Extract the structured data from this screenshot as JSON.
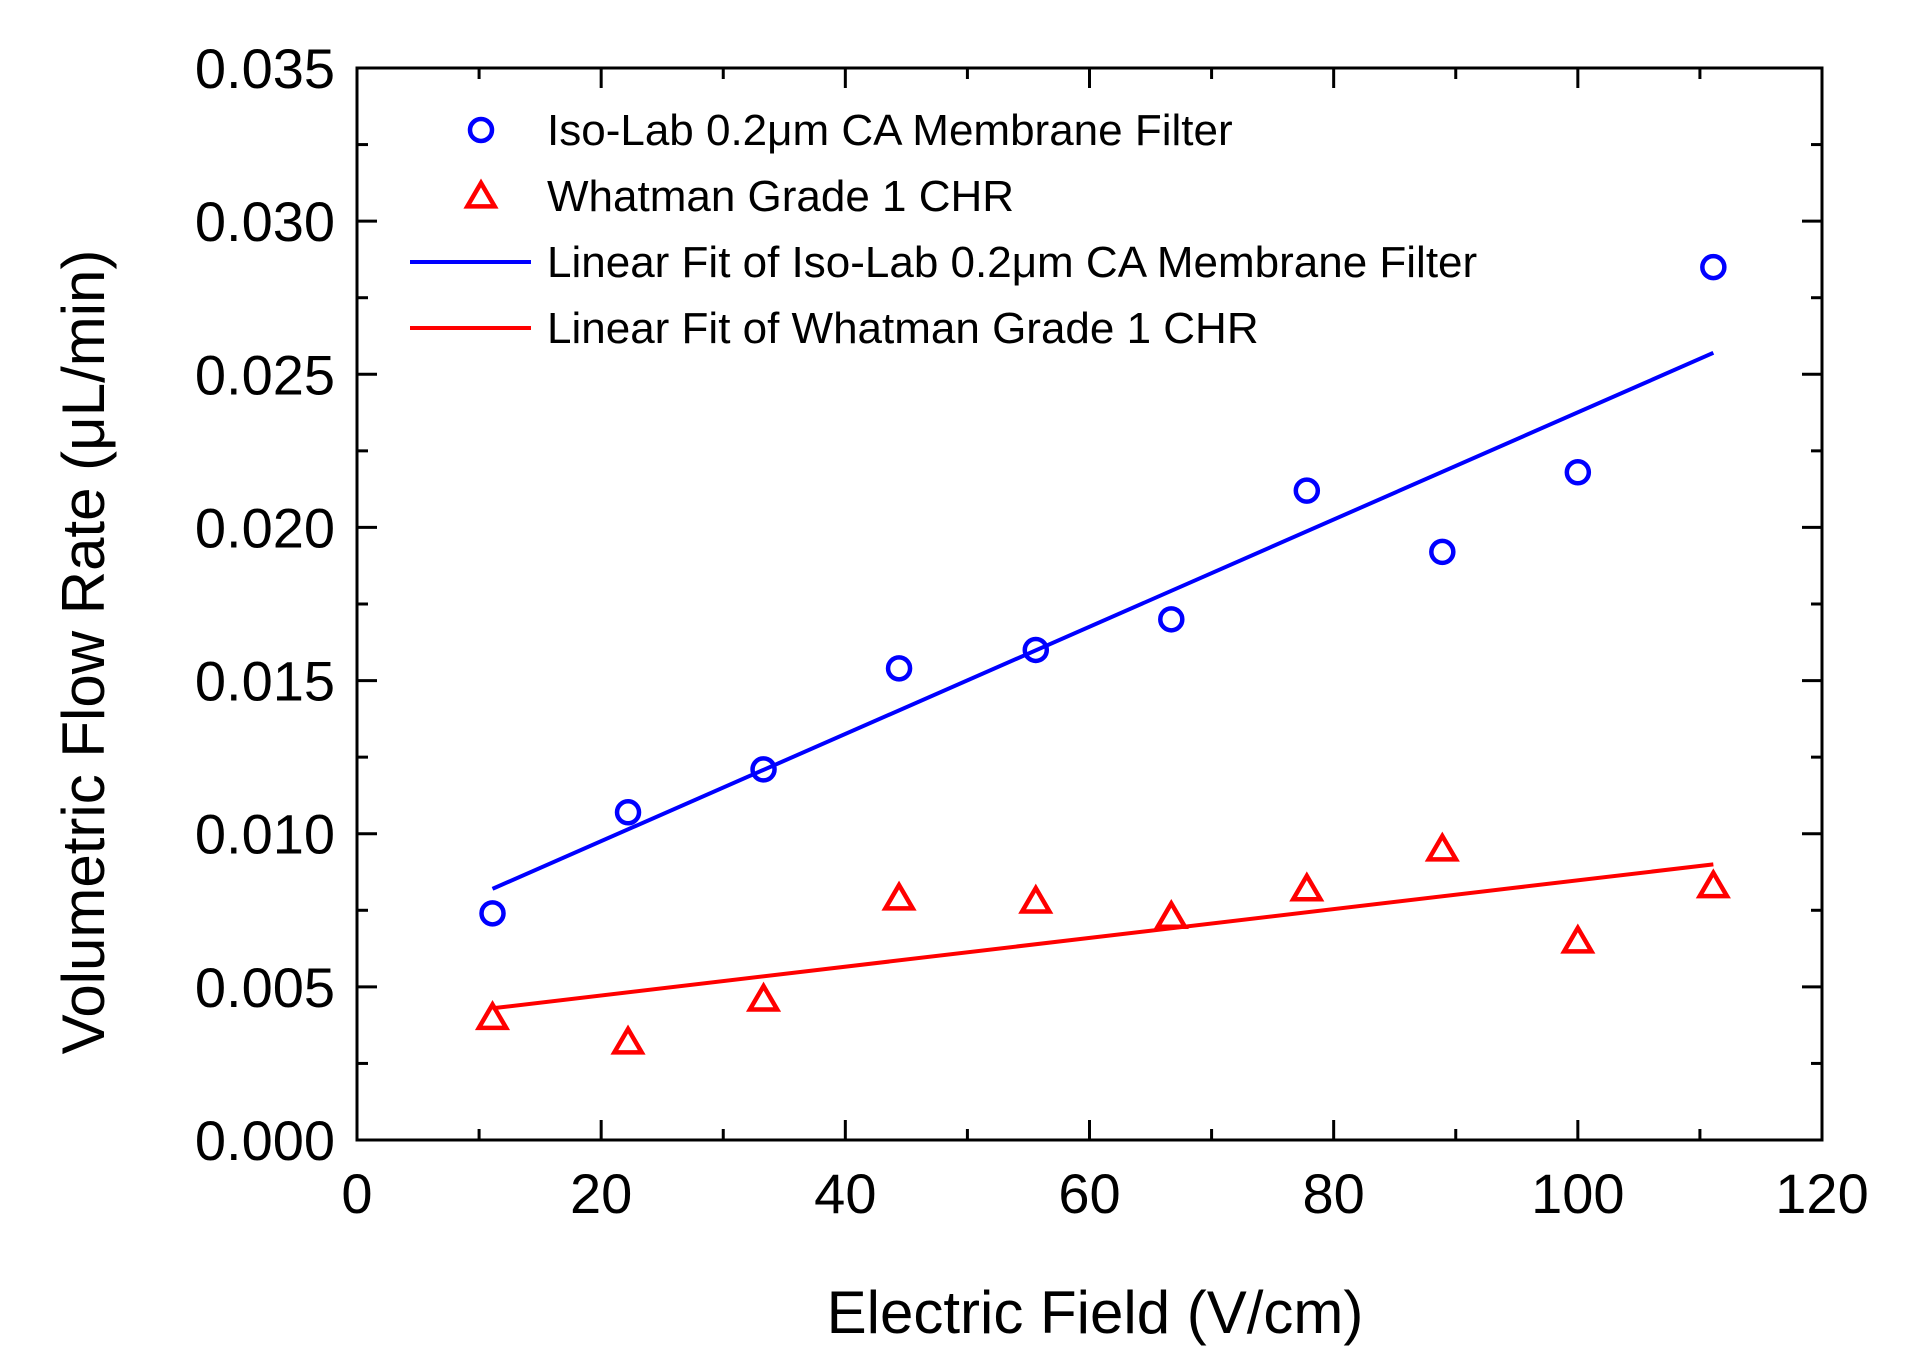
{
  "chart_data": {
    "type": "scatter",
    "title": "",
    "xlabel": "Electric Field (V/cm)",
    "ylabel": "Volumetric Flow Rate (μL/min)",
    "xlim": [
      0,
      120
    ],
    "ylim": [
      0,
      0.035
    ],
    "x_ticks": [
      "0",
      "20",
      "40",
      "60",
      "80",
      "100",
      "120"
    ],
    "y_ticks": [
      "0.000",
      "0.005",
      "0.010",
      "0.015",
      "0.020",
      "0.025",
      "0.030",
      "0.035"
    ],
    "grid": false,
    "legend_position": "top-left",
    "series": [
      {
        "name": "Iso-Lab 0.2μm CA Membrane Filter",
        "kind": "scatter",
        "marker": "circle",
        "color": "#0000ff",
        "x": [
          11.1,
          22.2,
          33.3,
          44.4,
          55.6,
          66.7,
          77.8,
          88.9,
          100,
          111.1
        ],
        "y": [
          0.0074,
          0.0107,
          0.0121,
          0.0154,
          0.016,
          0.017,
          0.0212,
          0.0192,
          0.0218,
          0.0285
        ]
      },
      {
        "name": "Whatman Grade 1 CHR",
        "kind": "scatter",
        "marker": "triangle",
        "color": "#ff0000",
        "x": [
          11.1,
          22.2,
          33.3,
          44.4,
          55.6,
          66.7,
          77.8,
          88.9,
          100,
          111.1
        ],
        "y": [
          0.004,
          0.0032,
          0.0046,
          0.0079,
          0.0078,
          0.0073,
          0.0082,
          0.0095,
          0.0065,
          0.0083
        ]
      },
      {
        "name": "Linear Fit of Iso-Lab 0.2μm CA Membrane Filter",
        "kind": "line",
        "color": "#0000ff",
        "x": [
          11.1,
          111.1
        ],
        "y": [
          0.0082,
          0.0257
        ]
      },
      {
        "name": "Linear Fit of Whatman Grade 1 CHR",
        "kind": "line",
        "color": "#ff0000",
        "x": [
          11.1,
          111.1
        ],
        "y": [
          0.0043,
          0.009
        ]
      }
    ]
  }
}
